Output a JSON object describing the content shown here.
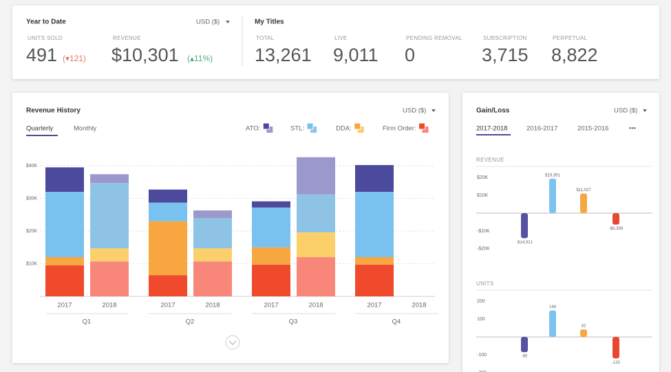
{
  "summary": {
    "year_to_date": {
      "title": "Year to Date",
      "currency": "USD ($)",
      "metrics": [
        {
          "label": "UNITS SOLD",
          "value": "491",
          "change": "(▾121)"
        },
        {
          "label": "REVENUE",
          "value": "$10,301",
          "change": "(▴11%)"
        }
      ]
    },
    "my_titles": {
      "title": "My Titles",
      "metrics": [
        {
          "label": "TOTAL",
          "value": "13,261"
        },
        {
          "label": "LIVE",
          "value": "9,011"
        },
        {
          "label": "PENDING REMOVAL",
          "value": "0"
        },
        {
          "label": "SUBSCRIPTION",
          "value": "3,715"
        },
        {
          "label": "PERPETUAL",
          "value": "8,822"
        }
      ]
    }
  },
  "revenue_history": {
    "title": "Revenue History",
    "currency": "USD ($)",
    "tabs": [
      "Quarterly",
      "Monthly"
    ],
    "chart_data": {
      "type": "stacked-bar",
      "groups": [
        "Q1",
        "Q2",
        "Q3",
        "Q4"
      ],
      "categories": [
        "2017",
        "2018",
        "2017",
        "2018",
        "2017",
        "2018",
        "2017",
        "2018"
      ],
      "series": [
        {
          "name": "ATO:",
          "colors": [
            "#4c4a9c",
            "#9b98cc"
          ],
          "values": [
            7.5,
            2.7,
            4,
            2.3,
            1.9,
            11.4,
            8.2,
            null
          ]
        },
        {
          "name": "STL:",
          "colors": [
            "#79c1ee",
            "#8fc3e6"
          ],
          "values": [
            20,
            20,
            5.7,
            9.3,
            12.2,
            11.6,
            20,
            null
          ]
        },
        {
          "name": "DDA:",
          "colors": [
            "#f7a640",
            "#fbd06a"
          ],
          "values": [
            2.5,
            4,
            16.5,
            4,
            5.3,
            7.6,
            2.3,
            null
          ]
        },
        {
          "name": "Firm Order:",
          "colors": [
            "#ef4a2c",
            "#f8877a"
          ],
          "values": [
            9.5,
            10.7,
            6.5,
            10.7,
            9.7,
            12,
            9.7,
            null
          ]
        }
      ],
      "ylim": [
        0,
        44
      ],
      "yticks": [
        {
          "value": 10,
          "label": "$10K"
        },
        {
          "value": 20,
          "label": "$20K"
        },
        {
          "value": 30,
          "label": "$30K"
        },
        {
          "value": 40,
          "label": "$40K"
        }
      ],
      "grid": true
    }
  },
  "gain_loss": {
    "title": "Gain/Loss",
    "currency": "USD ($)",
    "tabs": [
      "2017-2018",
      "2016-2017",
      "2015-2016",
      "•••"
    ],
    "charts": [
      {
        "type": "bar",
        "title": "REVENUE",
        "values": [
          -14021,
          19391,
          11027,
          -6399
        ],
        "value_labels": [
          "-$14,021",
          "$19,391",
          "$11,027",
          "-$6,399"
        ],
        "colors": [
          "#5552a3",
          "#7cc4ef",
          "#f5a742",
          "#e8482f"
        ],
        "ylim": [
          -22000,
          22000
        ],
        "yticks": [
          {
            "value": 20000,
            "label": "$20K"
          },
          {
            "value": 10000,
            "label": "$10K"
          },
          {
            "value": -10000,
            "label": "-$10K"
          },
          {
            "value": -20000,
            "label": "-$20K"
          }
        ]
      },
      {
        "type": "bar",
        "title": "UNITS",
        "values": [
          -85,
          148,
          42,
          -120
        ],
        "colors": [
          "#5552a3",
          "#7cc4ef",
          "#f5a742",
          "#e8482f"
        ],
        "ylim": [
          -210,
          210
        ],
        "yticks": [
          200,
          100,
          -100,
          -200
        ]
      }
    ]
  }
}
